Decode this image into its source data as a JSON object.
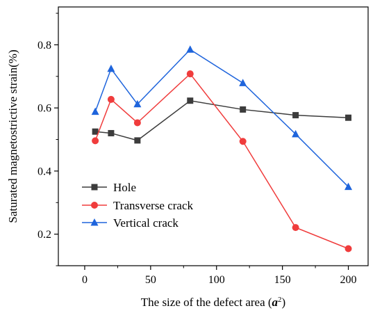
{
  "chart_data": {
    "type": "line",
    "xlabel_main": "The size of the defect area (",
    "xlabel_var": "a",
    "xlabel_sup": "2",
    "xlabel_close": ")",
    "ylabel": "Saturated magnetostrictive strain(%)",
    "xlim": [
      -20,
      215
    ],
    "ylim": [
      0.1,
      0.92
    ],
    "xticks": [
      0,
      50,
      100,
      150,
      200
    ],
    "yticks": [
      0.2,
      0.4,
      0.6,
      0.8
    ],
    "xtick_labels": [
      "0",
      "50",
      "100",
      "150",
      "200"
    ],
    "ytick_labels": [
      "0.2",
      "0.4",
      "0.6",
      "0.8"
    ],
    "legend_position": "lower-left",
    "series": [
      {
        "name": "Hole",
        "color": "#3c3c3c",
        "marker": "square",
        "x": [
          8,
          20,
          40,
          80,
          120,
          160,
          200
        ],
        "y": [
          0.525,
          0.52,
          0.497,
          0.623,
          0.595,
          0.577,
          0.569
        ]
      },
      {
        "name": "Transverse crack",
        "color": "#f03c3c",
        "marker": "circle",
        "x": [
          8,
          20,
          40,
          80,
          120,
          160,
          200
        ],
        "y": [
          0.496,
          0.627,
          0.553,
          0.708,
          0.494,
          0.221,
          0.154
        ]
      },
      {
        "name": "Vertical crack",
        "color": "#1e64dc",
        "marker": "triangle",
        "x": [
          8,
          20,
          40,
          80,
          120,
          160,
          200
        ],
        "y": [
          0.588,
          0.724,
          0.612,
          0.785,
          0.679,
          0.517,
          0.35
        ]
      }
    ]
  }
}
